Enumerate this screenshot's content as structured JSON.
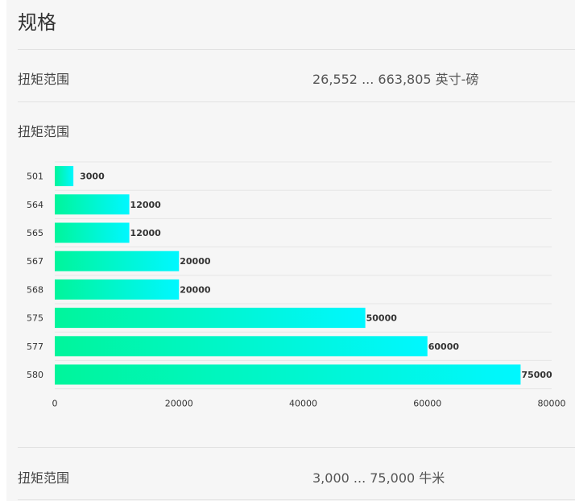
{
  "section_title": "规格",
  "spec_rows": [
    {
      "label": "扭矩范围",
      "value": "26,552 ... 663,805 英寸-磅"
    },
    {
      "label": "扭矩范围",
      "value": "3,000 ... 75,000 牛米"
    }
  ],
  "chart_heading": "扭矩范围",
  "colors": {
    "bar_start": "#00f59b",
    "bar_end": "#00f7ff",
    "grid": "#e6e6e6"
  },
  "chart_data": {
    "type": "bar",
    "orientation": "horizontal",
    "categories": [
      "501",
      "564",
      "565",
      "567",
      "568",
      "575",
      "577",
      "580"
    ],
    "values": [
      3000,
      12000,
      12000,
      20000,
      20000,
      50000,
      60000,
      75000
    ],
    "value_labels": [
      "3000",
      "12000",
      "12000",
      "20000",
      "20000",
      "50000",
      "60000",
      "75000"
    ],
    "x_ticks": [
      "0",
      "20000",
      "40000",
      "60000",
      "80000"
    ],
    "xlim": [
      0,
      80000
    ],
    "grid": true
  }
}
